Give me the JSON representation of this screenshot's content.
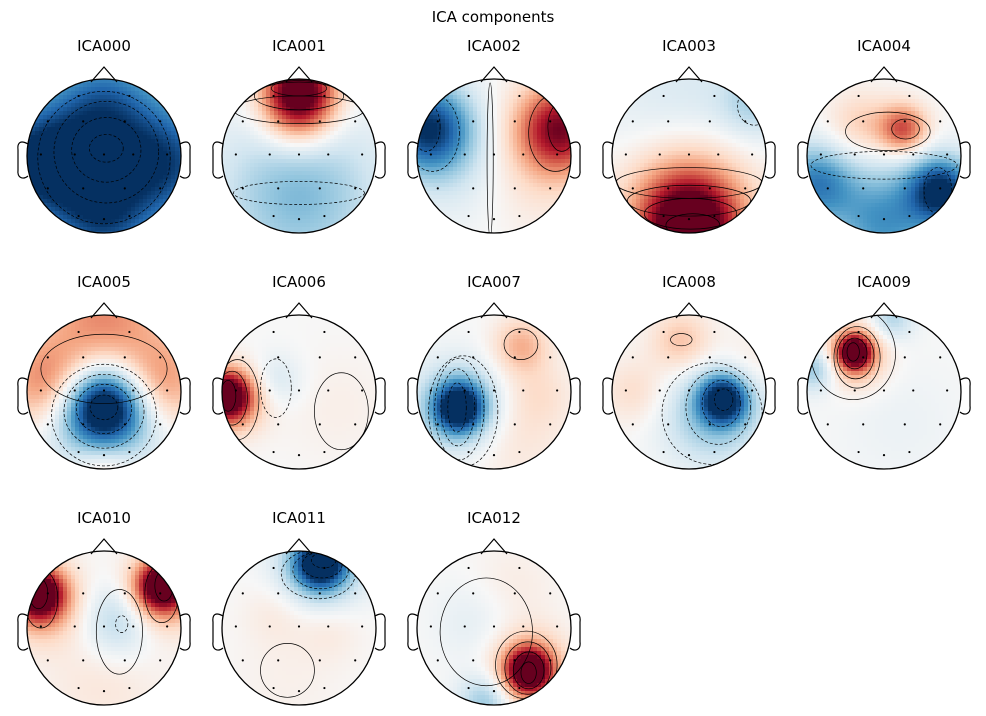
{
  "figure": {
    "title": "ICA components"
  },
  "chart_data": {
    "type": "heatmap",
    "title": "ICA components",
    "colormap": [
      "#053061",
      "#2166ac",
      "#4393c3",
      "#92c5de",
      "#d1e5f0",
      "#f7f7f7",
      "#fddbc7",
      "#f4a582",
      "#d6604d",
      "#b2182b",
      "#67001f"
    ],
    "components": [
      {
        "name": "ICA000",
        "blobs": [
          [
            0,
            0.05,
            0.8,
            -0.75
          ],
          [
            -0.95,
            0.1,
            0.55,
            -0.75
          ],
          [
            0.95,
            0.1,
            0.55,
            -0.55
          ],
          [
            0,
            0.95,
            0.45,
            -0.45
          ],
          [
            0,
            -0.8,
            0.45,
            -0.35
          ]
        ],
        "contours": [
          {
            "cx": 0.03,
            "cy": -0.1,
            "rx": 0.22,
            "ry": 0.18,
            "neg": true
          },
          {
            "cx": 0.03,
            "cy": -0.08,
            "rx": 0.45,
            "ry": 0.42,
            "neg": true
          },
          {
            "cx": 0.03,
            "cy": -0.05,
            "rx": 0.68,
            "ry": 0.66,
            "neg": true
          },
          {
            "cx": 0,
            "cy": 0.02,
            "rx": 0.86,
            "ry": 0.86,
            "neg": true
          }
        ]
      },
      {
        "name": "ICA001",
        "blobs": [
          [
            0,
            -0.88,
            0.32,
            1.0
          ],
          [
            0,
            -0.55,
            0.35,
            0.5
          ],
          [
            0,
            0.6,
            0.7,
            -0.35
          ],
          [
            0,
            0.05,
            0.8,
            -0.12
          ]
        ],
        "contours": [
          {
            "cx": 0,
            "cy": -0.88,
            "rx": 0.36,
            "ry": 0.1,
            "neg": false
          },
          {
            "cx": 0,
            "cy": -0.78,
            "rx": 0.58,
            "ry": 0.18,
            "neg": false
          },
          {
            "cx": 0,
            "cy": -0.6,
            "rx": 0.85,
            "ry": 0.18,
            "neg": false
          },
          {
            "cx": 0,
            "cy": 0.48,
            "rx": 0.85,
            "ry": 0.15,
            "neg": true
          }
        ]
      },
      {
        "name": "ICA002",
        "blobs": [
          [
            -0.85,
            -0.35,
            0.4,
            -1.0
          ],
          [
            0.85,
            -0.35,
            0.4,
            0.95
          ],
          [
            -0.4,
            0.3,
            0.5,
            -0.12
          ],
          [
            0.45,
            0.35,
            0.5,
            0.12
          ]
        ],
        "contours": [
          {
            "cx": -0.88,
            "cy": -0.38,
            "rx": 0.18,
            "ry": 0.32,
            "neg": true
          },
          {
            "cx": -0.8,
            "cy": -0.3,
            "rx": 0.35,
            "ry": 0.5,
            "neg": true
          },
          {
            "cx": 0.88,
            "cy": -0.38,
            "rx": 0.18,
            "ry": 0.32,
            "neg": false
          },
          {
            "cx": 0.8,
            "cy": -0.3,
            "rx": 0.35,
            "ry": 0.5,
            "neg": false
          },
          {
            "cx": -0.05,
            "cy": 0.05,
            "rx": 0.04,
            "ry": 1.0,
            "neg": false
          }
        ]
      },
      {
        "name": "ICA003",
        "blobs": [
          [
            0,
            0.95,
            0.42,
            1.0
          ],
          [
            0,
            0.55,
            0.6,
            0.6
          ],
          [
            0,
            -0.45,
            0.8,
            -0.2
          ],
          [
            0.85,
            -0.7,
            0.3,
            -0.25
          ]
        ],
        "contours": [
          {
            "cx": 0.05,
            "cy": 0.9,
            "rx": 0.35,
            "ry": 0.15,
            "neg": false
          },
          {
            "cx": 0.02,
            "cy": 0.75,
            "rx": 0.6,
            "ry": 0.2,
            "neg": false
          },
          {
            "cx": 0,
            "cy": 0.58,
            "rx": 0.8,
            "ry": 0.2,
            "neg": false
          },
          {
            "cx": 0,
            "cy": 0.35,
            "rx": 0.95,
            "ry": 0.2,
            "neg": false
          },
          {
            "cx": 0.85,
            "cy": -0.65,
            "rx": 0.22,
            "ry": 0.25,
            "neg": true
          }
        ]
      },
      {
        "name": "ICA004",
        "blobs": [
          [
            0.25,
            -0.35,
            0.22,
            0.65
          ],
          [
            -0.3,
            -0.4,
            0.3,
            0.25
          ],
          [
            -0.9,
            0.35,
            0.35,
            -0.65
          ],
          [
            0.75,
            0.45,
            0.3,
            -1.0
          ],
          [
            0,
            0.85,
            0.5,
            -0.6
          ]
        ],
        "contours": [
          {
            "cx": 0.28,
            "cy": -0.35,
            "rx": 0.18,
            "ry": 0.13,
            "neg": false
          },
          {
            "cx": 0.05,
            "cy": -0.32,
            "rx": 0.55,
            "ry": 0.25,
            "neg": false
          },
          {
            "cx": 0,
            "cy": 0.12,
            "rx": 0.95,
            "ry": 0.18,
            "neg": true
          },
          {
            "cx": 0.7,
            "cy": 0.45,
            "rx": 0.18,
            "ry": 0.3,
            "neg": true
          }
        ]
      },
      {
        "name": "ICA005",
        "blobs": [
          [
            0,
            0.2,
            0.35,
            -1.0
          ],
          [
            0,
            0.3,
            0.55,
            -0.45
          ],
          [
            0,
            -0.9,
            0.6,
            0.5
          ],
          [
            -0.75,
            -0.1,
            0.4,
            0.5
          ],
          [
            0.75,
            -0.1,
            0.4,
            0.45
          ],
          [
            0,
            1.0,
            0.3,
            0.3
          ]
        ],
        "contours": [
          {
            "cx": 0,
            "cy": 0.2,
            "rx": 0.18,
            "ry": 0.16,
            "neg": true
          },
          {
            "cx": 0,
            "cy": 0.22,
            "rx": 0.36,
            "ry": 0.32,
            "neg": true
          },
          {
            "cx": 0,
            "cy": 0.25,
            "rx": 0.52,
            "ry": 0.48,
            "neg": true
          },
          {
            "cx": 0,
            "cy": 0.3,
            "rx": 0.68,
            "ry": 0.66,
            "neg": true
          },
          {
            "cx": 0,
            "cy": -0.3,
            "rx": 0.82,
            "ry": 0.45,
            "neg": false
          }
        ]
      },
      {
        "name": "ICA006",
        "blobs": [
          [
            -0.95,
            0.05,
            0.22,
            1.0
          ],
          [
            -0.85,
            0.1,
            0.3,
            0.45
          ],
          [
            -0.3,
            -0.15,
            0.25,
            -0.18
          ],
          [
            0.5,
            0.2,
            0.5,
            0.06
          ]
        ],
        "contours": [
          {
            "cx": -0.92,
            "cy": 0.05,
            "rx": 0.1,
            "ry": 0.2,
            "neg": false
          },
          {
            "cx": -0.87,
            "cy": 0.08,
            "rx": 0.2,
            "ry": 0.35,
            "neg": false
          },
          {
            "cx": -0.8,
            "cy": 0.1,
            "rx": 0.28,
            "ry": 0.52,
            "neg": false
          },
          {
            "cx": -0.3,
            "cy": -0.05,
            "rx": 0.2,
            "ry": 0.38,
            "neg": true
          },
          {
            "cx": 0.55,
            "cy": 0.25,
            "rx": 0.35,
            "ry": 0.5,
            "neg": false
          }
        ]
      },
      {
        "name": "ICA007",
        "blobs": [
          [
            -0.45,
            0.2,
            0.22,
            -1.0
          ],
          [
            -0.45,
            0.2,
            0.4,
            -0.5
          ],
          [
            0.35,
            -0.6,
            0.25,
            0.35
          ],
          [
            0.2,
            0.5,
            0.5,
            0.15
          ],
          [
            0.6,
            0.0,
            0.3,
            0.12
          ]
        ],
        "contours": [
          {
            "cx": -0.48,
            "cy": 0.2,
            "rx": 0.12,
            "ry": 0.32,
            "neg": true
          },
          {
            "cx": -0.47,
            "cy": 0.2,
            "rx": 0.22,
            "ry": 0.5,
            "neg": true
          },
          {
            "cx": -0.45,
            "cy": 0.22,
            "rx": 0.32,
            "ry": 0.66,
            "neg": true
          },
          {
            "cx": -0.4,
            "cy": 0.25,
            "rx": 0.45,
            "ry": 0.72,
            "neg": true
          },
          {
            "cx": 0.35,
            "cy": -0.62,
            "rx": 0.22,
            "ry": 0.2,
            "neg": false
          }
        ]
      },
      {
        "name": "ICA008",
        "blobs": [
          [
            0.45,
            0.1,
            0.22,
            -1.0
          ],
          [
            0.3,
            0.3,
            0.45,
            -0.4
          ],
          [
            -0.1,
            -0.65,
            0.28,
            0.3
          ],
          [
            -0.7,
            0.0,
            0.3,
            0.18
          ],
          [
            0.8,
            -0.4,
            0.3,
            0.1
          ]
        ],
        "contours": [
          {
            "cx": 0.45,
            "cy": 0.1,
            "rx": 0.12,
            "ry": 0.14,
            "neg": true
          },
          {
            "cx": 0.42,
            "cy": 0.15,
            "rx": 0.25,
            "ry": 0.3,
            "neg": true
          },
          {
            "cx": 0.38,
            "cy": 0.2,
            "rx": 0.42,
            "ry": 0.48,
            "neg": true
          },
          {
            "cx": 0.3,
            "cy": 0.28,
            "rx": 0.65,
            "ry": 0.66,
            "neg": true
          },
          {
            "cx": -0.1,
            "cy": -0.68,
            "rx": 0.14,
            "ry": 0.08,
            "neg": false
          }
        ]
      },
      {
        "name": "ICA009",
        "blobs": [
          [
            -0.38,
            -0.52,
            0.15,
            1.0
          ],
          [
            -0.38,
            -0.48,
            0.28,
            0.5
          ],
          [
            0.1,
            -0.95,
            0.2,
            -0.3
          ],
          [
            -0.9,
            -0.3,
            0.2,
            -0.4
          ],
          [
            0.2,
            0.4,
            0.6,
            -0.06
          ]
        ],
        "contours": [
          {
            "cx": -0.4,
            "cy": -0.52,
            "rx": 0.08,
            "ry": 0.12,
            "neg": false
          },
          {
            "cx": -0.38,
            "cy": -0.5,
            "rx": 0.16,
            "ry": 0.2,
            "neg": false
          },
          {
            "cx": -0.37,
            "cy": -0.47,
            "rx": 0.24,
            "ry": 0.3,
            "neg": false
          },
          {
            "cx": -0.35,
            "cy": -0.45,
            "rx": 0.3,
            "ry": 0.4,
            "neg": false
          },
          {
            "cx": -0.4,
            "cy": -0.5,
            "rx": 0.55,
            "ry": 0.6,
            "neg": false
          }
        ]
      },
      {
        "name": "ICA010",
        "blobs": [
          [
            0.75,
            -0.55,
            0.22,
            1.0
          ],
          [
            -0.85,
            -0.45,
            0.22,
            1.0
          ],
          [
            0.75,
            -0.45,
            0.35,
            0.5
          ],
          [
            -0.8,
            -0.35,
            0.35,
            0.5
          ],
          [
            0.2,
            -0.1,
            0.35,
            -0.35
          ],
          [
            0,
            0.65,
            0.55,
            0.12
          ]
        ],
        "contours": [
          {
            "cx": 0.78,
            "cy": -0.55,
            "rx": 0.12,
            "ry": 0.2,
            "neg": false
          },
          {
            "cx": 0.75,
            "cy": -0.45,
            "rx": 0.22,
            "ry": 0.38,
            "neg": false
          },
          {
            "cx": -0.85,
            "cy": -0.45,
            "rx": 0.12,
            "ry": 0.2,
            "neg": false
          },
          {
            "cx": -0.82,
            "cy": -0.38,
            "rx": 0.22,
            "ry": 0.38,
            "neg": false
          },
          {
            "cx": 0.23,
            "cy": -0.05,
            "rx": 0.08,
            "ry": 0.11,
            "neg": true
          },
          {
            "cx": 0.2,
            "cy": 0.05,
            "rx": 0.3,
            "ry": 0.55,
            "neg": false
          }
        ]
      },
      {
        "name": "ICA011",
        "blobs": [
          [
            0.28,
            -0.85,
            0.22,
            -1.0
          ],
          [
            0.28,
            -0.8,
            0.38,
            -0.5
          ],
          [
            -0.3,
            -0.2,
            0.3,
            0.1
          ],
          [
            0.4,
            0.0,
            0.3,
            0.1
          ],
          [
            -0.15,
            0.7,
            0.5,
            0.05
          ]
        ],
        "contours": [
          {
            "cx": 0.32,
            "cy": -0.88,
            "rx": 0.16,
            "ry": 0.1,
            "neg": true
          },
          {
            "cx": 0.3,
            "cy": -0.82,
            "rx": 0.26,
            "ry": 0.17,
            "neg": true
          },
          {
            "cx": 0.28,
            "cy": -0.75,
            "rx": 0.36,
            "ry": 0.24,
            "neg": true
          },
          {
            "cx": 0.25,
            "cy": -0.7,
            "rx": 0.48,
            "ry": 0.32,
            "neg": true
          },
          {
            "cx": -0.15,
            "cy": 0.55,
            "rx": 0.35,
            "ry": 0.35,
            "neg": false
          }
        ]
      },
      {
        "name": "ICA012",
        "blobs": [
          [
            0.45,
            0.55,
            0.2,
            1.0
          ],
          [
            0.45,
            0.55,
            0.35,
            0.5
          ],
          [
            -0.1,
            0.95,
            0.25,
            -0.4
          ],
          [
            -0.2,
            -0.1,
            0.4,
            -0.12
          ],
          [
            0.2,
            -0.5,
            0.4,
            0.1
          ]
        ],
        "contours": [
          {
            "cx": 0.45,
            "cy": 0.58,
            "rx": 0.1,
            "ry": 0.14,
            "neg": false
          },
          {
            "cx": 0.45,
            "cy": 0.55,
            "rx": 0.2,
            "ry": 0.24,
            "neg": false
          },
          {
            "cx": 0.44,
            "cy": 0.52,
            "rx": 0.3,
            "ry": 0.34,
            "neg": false
          },
          {
            "cx": 0.42,
            "cy": 0.48,
            "rx": 0.4,
            "ry": 0.44,
            "neg": false
          },
          {
            "cx": -0.1,
            "cy": 0.05,
            "rx": 0.6,
            "ry": 0.7,
            "neg": false
          }
        ]
      }
    ],
    "sensors": [
      [
        -0.33,
        -0.78
      ],
      [
        0.33,
        -0.78
      ],
      [
        -0.73,
        -0.45
      ],
      [
        -0.27,
        -0.45
      ],
      [
        0.27,
        -0.45
      ],
      [
        0.73,
        -0.45
      ],
      [
        -0.82,
        -0.02
      ],
      [
        -0.38,
        -0.02
      ],
      [
        0,
        -0.02
      ],
      [
        0.38,
        -0.02
      ],
      [
        0.82,
        -0.02
      ],
      [
        -0.73,
        0.42
      ],
      [
        -0.27,
        0.42
      ],
      [
        0.27,
        0.42
      ],
      [
        0.73,
        0.42
      ],
      [
        -0.33,
        0.78
      ],
      [
        0,
        0.82
      ],
      [
        0.33,
        0.78
      ]
    ]
  }
}
